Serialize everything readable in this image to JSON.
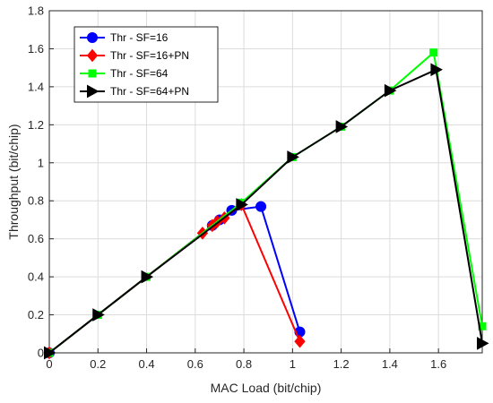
{
  "chart_data": {
    "type": "line",
    "title": "",
    "xlabel": "MAC Load (bit/chip)",
    "ylabel": "Throughput (bit/chip)",
    "xlim": [
      0,
      1.78
    ],
    "ylim": [
      0,
      1.8
    ],
    "xticks": [
      0,
      0.2,
      0.4,
      0.6,
      0.8,
      1,
      1.2,
      1.4,
      1.6
    ],
    "xtick_labels": [
      "0",
      "0.2",
      "0.4",
      "0.6",
      "0.8",
      "1",
      "1.2",
      "1.4",
      "1.6"
    ],
    "yticks": [
      0,
      0.2,
      0.4,
      0.6,
      0.8,
      1,
      1.2,
      1.4,
      1.6,
      1.8
    ],
    "ytick_labels": [
      "0",
      "0.2",
      "0.4",
      "0.6",
      "0.8",
      "1",
      "1.2",
      "1.4",
      "1.6",
      "1.8"
    ],
    "grid": true,
    "legend_position": "top-left",
    "series": [
      {
        "name": "Thr - SF=16",
        "color": "#0000ff",
        "marker": "circle",
        "x": [
          0,
          0.67,
          0.7,
          0.75,
          0.87,
          1.03
        ],
        "y": [
          0,
          0.67,
          0.7,
          0.75,
          0.77,
          0.11
        ]
      },
      {
        "name": "Thr - SF=16+PN",
        "color": "#ff0000",
        "marker": "diamond",
        "x": [
          0,
          0.63,
          0.67,
          0.69,
          0.72,
          0.79,
          1.03
        ],
        "y": [
          0,
          0.63,
          0.67,
          0.69,
          0.71,
          0.78,
          0.06
        ]
      },
      {
        "name": "Thr - SF=64",
        "color": "#00ff00",
        "marker": "square",
        "x": [
          0,
          0.2,
          0.4,
          0.79,
          1.0,
          1.2,
          1.4,
          1.58,
          1.78
        ],
        "y": [
          0,
          0.2,
          0.4,
          0.79,
          1.03,
          1.19,
          1.38,
          1.58,
          0.14
        ]
      },
      {
        "name": "Thr - SF=64+PN",
        "color": "#000000",
        "marker": "triangle-right",
        "x": [
          0,
          0.2,
          0.4,
          0.79,
          1.0,
          1.2,
          1.4,
          1.59,
          1.78
        ],
        "y": [
          0,
          0.2,
          0.4,
          0.78,
          1.03,
          1.19,
          1.38,
          1.49,
          0.05
        ]
      }
    ]
  }
}
